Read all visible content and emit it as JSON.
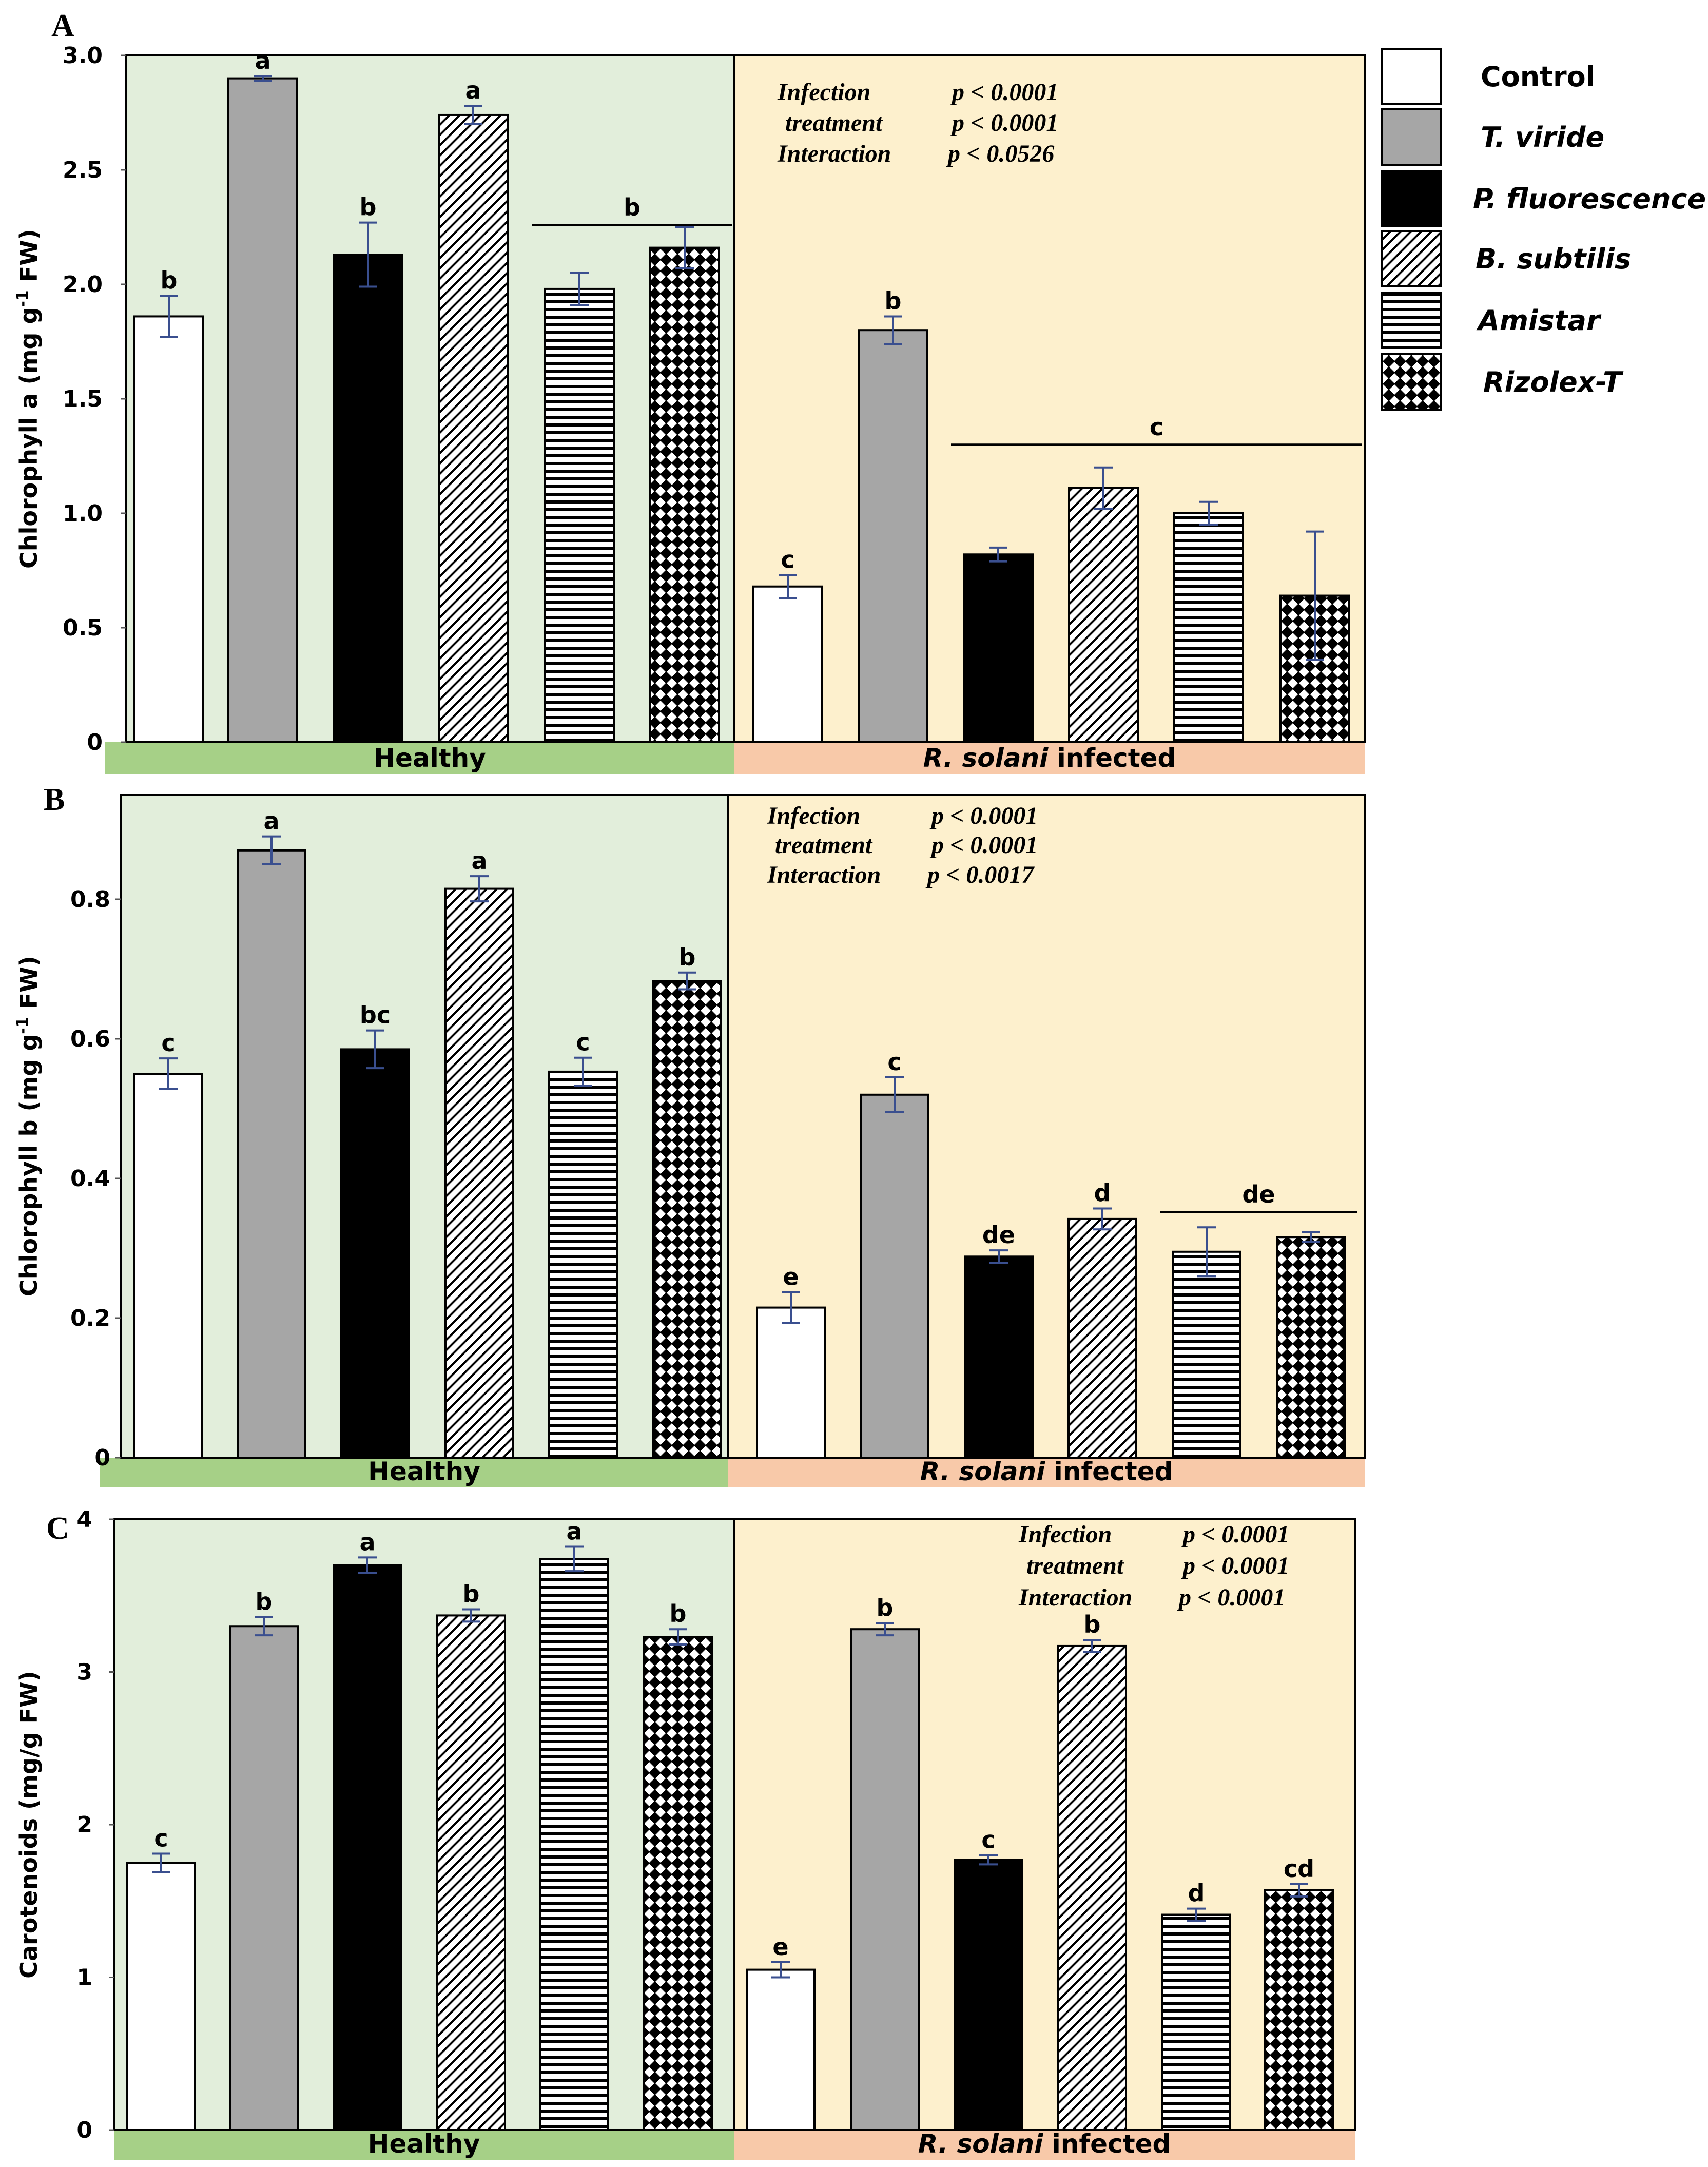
{
  "legend": {
    "items": [
      {
        "label": "Control",
        "pattern": "white",
        "italic": false
      },
      {
        "label": "T. viride",
        "pattern": "gray",
        "italic": true
      },
      {
        "label": "P. fluorescence",
        "pattern": "black",
        "italic": true
      },
      {
        "label": "B. subtilis",
        "pattern": "diag",
        "italic": true
      },
      {
        "label": "Amistar",
        "pattern": "hstripe",
        "italic": true
      },
      {
        "label": "Rizolex-T",
        "pattern": "checker",
        "italic": true
      }
    ]
  },
  "colors": {
    "healthy_bg": "#e2eedb",
    "infected_bg": "#fdf0cd",
    "healthy_bar": "#a6d087",
    "infected_bar": "#f8c9a9",
    "gray_bar": "#a6a6a6",
    "error_bar": "#3a4f8f"
  },
  "chart_data": [
    {
      "panel": "A",
      "type": "bar",
      "ylabel_main": "Chlorophyll a (mg g",
      "ylabel_sup": "-1",
      "ylabel_end": " FW)",
      "ylim": [
        0,
        3.0
      ],
      "yticks": [
        "0",
        "0.5",
        "1.0",
        "1.5",
        "2.0",
        "2.5",
        "3.0"
      ],
      "groups": [
        "Healthy",
        "R. solani infected"
      ],
      "group_label_healthy": "Healthy",
      "group_label_infected_italic": "R. solani",
      "group_label_infected_rest": " infected",
      "stats": [
        {
          "term": "Infection",
          "p": "p < 0.0001"
        },
        {
          "term": "treatment",
          "p": "p < 0.0001"
        },
        {
          "term": "Interaction",
          "p": "p < 0.0526"
        }
      ],
      "series": [
        {
          "name": "Control",
          "values": [
            1.86,
            0.68
          ],
          "errors": [
            0.09,
            0.05
          ],
          "letters": [
            "b",
            "c"
          ]
        },
        {
          "name": "T. viride",
          "values": [
            2.9,
            1.8
          ],
          "errors": [
            0.01,
            0.06
          ],
          "letters": [
            "a",
            "b"
          ]
        },
        {
          "name": "P. fluorescence",
          "values": [
            2.13,
            0.82
          ],
          "errors": [
            0.14,
            0.03
          ],
          "letters": [
            "b",
            ""
          ]
        },
        {
          "name": "B. subtilis",
          "values": [
            2.74,
            1.11
          ],
          "errors": [
            0.04,
            0.09
          ],
          "letters": [
            "a",
            ""
          ]
        },
        {
          "name": "Amistar",
          "values": [
            1.98,
            1.0
          ],
          "errors": [
            0.07,
            0.05
          ],
          "letters": [
            "",
            ""
          ]
        },
        {
          "name": "Rizolex-T",
          "values": [
            2.16,
            0.64
          ],
          "errors": [
            0.09,
            0.28
          ],
          "letters": [
            "",
            ""
          ]
        }
      ],
      "group_letters": [
        {
          "letter": "b",
          "group": 0,
          "from": 4,
          "to": 5
        },
        {
          "letter": "c",
          "group": 1,
          "from": 2,
          "to": 5
        }
      ]
    },
    {
      "panel": "B",
      "type": "bar",
      "ylabel_main": "Chlorophyll b (mg g",
      "ylabel_sup": "-1",
      "ylabel_end": " FW)",
      "ylim": [
        0,
        0.95
      ],
      "yticks": [
        "0",
        "0.2",
        "0.4",
        "0.6",
        "0.8"
      ],
      "groups": [
        "Healthy",
        "R. solani infected"
      ],
      "group_label_healthy": "Healthy",
      "group_label_infected_italic": "R. solani",
      "group_label_infected_rest": " infected",
      "stats": [
        {
          "term": "Infection",
          "p": "p < 0.0001"
        },
        {
          "term": "treatment",
          "p": "p < 0.0001"
        },
        {
          "term": "Interaction",
          "p": "p < 0.0017"
        }
      ],
      "series": [
        {
          "name": "Control",
          "values": [
            0.55,
            0.215
          ],
          "errors": [
            0.022,
            0.022
          ],
          "letters": [
            "c",
            "e"
          ]
        },
        {
          "name": "T. viride",
          "values": [
            0.87,
            0.52
          ],
          "errors": [
            0.02,
            0.025
          ],
          "letters": [
            "a",
            "c"
          ]
        },
        {
          "name": "P. fluorescence",
          "values": [
            0.585,
            0.288
          ],
          "errors": [
            0.027,
            0.009
          ],
          "letters": [
            "bc",
            "de"
          ]
        },
        {
          "name": "B. subtilis",
          "values": [
            0.815,
            0.342
          ],
          "errors": [
            0.018,
            0.015
          ],
          "letters": [
            "a",
            "d"
          ]
        },
        {
          "name": "Amistar",
          "values": [
            0.553,
            0.295
          ],
          "errors": [
            0.02,
            0.035
          ],
          "letters": [
            "c",
            ""
          ]
        },
        {
          "name": "Rizolex-T",
          "values": [
            0.683,
            0.316
          ],
          "errors": [
            0.012,
            0.007
          ],
          "letters": [
            "b",
            ""
          ]
        }
      ],
      "group_letters": [
        {
          "letter": "de",
          "group": 1,
          "from": 4,
          "to": 5
        }
      ]
    },
    {
      "panel": "C",
      "type": "bar",
      "ylabel_main": "Carotenoids (mg/g FW)",
      "ylabel_sup": "",
      "ylabel_end": "",
      "ylim": [
        0,
        4.0
      ],
      "yticks": [
        "0",
        "1",
        "2",
        "3",
        "4"
      ],
      "groups": [
        "Healthy",
        "R. solani infected"
      ],
      "group_label_healthy": "Healthy",
      "group_label_infected_italic": "R. solani",
      "group_label_infected_rest": " infected",
      "stats": [
        {
          "term": "Infection",
          "p": "p < 0.0001"
        },
        {
          "term": "treatment",
          "p": "p < 0.0001"
        },
        {
          "term": "Interaction",
          "p": "p < 0.0001"
        }
      ],
      "series": [
        {
          "name": "Control",
          "values": [
            1.75,
            1.05
          ],
          "errors": [
            0.06,
            0.05
          ],
          "letters": [
            "c",
            "e"
          ]
        },
        {
          "name": "T. viride",
          "values": [
            3.3,
            3.28
          ],
          "errors": [
            0.06,
            0.04
          ],
          "letters": [
            "b",
            "b"
          ]
        },
        {
          "name": "P. fluorescence",
          "values": [
            3.7,
            1.77
          ],
          "errors": [
            0.05,
            0.03
          ],
          "letters": [
            "a",
            "c"
          ]
        },
        {
          "name": "B. subtilis",
          "values": [
            3.37,
            3.17
          ],
          "errors": [
            0.04,
            0.04
          ],
          "letters": [
            "b",
            "b"
          ]
        },
        {
          "name": "Amistar",
          "values": [
            3.74,
            1.41
          ],
          "errors": [
            0.08,
            0.04
          ],
          "letters": [
            "a",
            "d"
          ]
        },
        {
          "name": "Rizolex-T",
          "values": [
            3.23,
            1.57
          ],
          "errors": [
            0.05,
            0.04
          ],
          "letters": [
            "b",
            "cd"
          ]
        }
      ],
      "group_letters": []
    }
  ]
}
